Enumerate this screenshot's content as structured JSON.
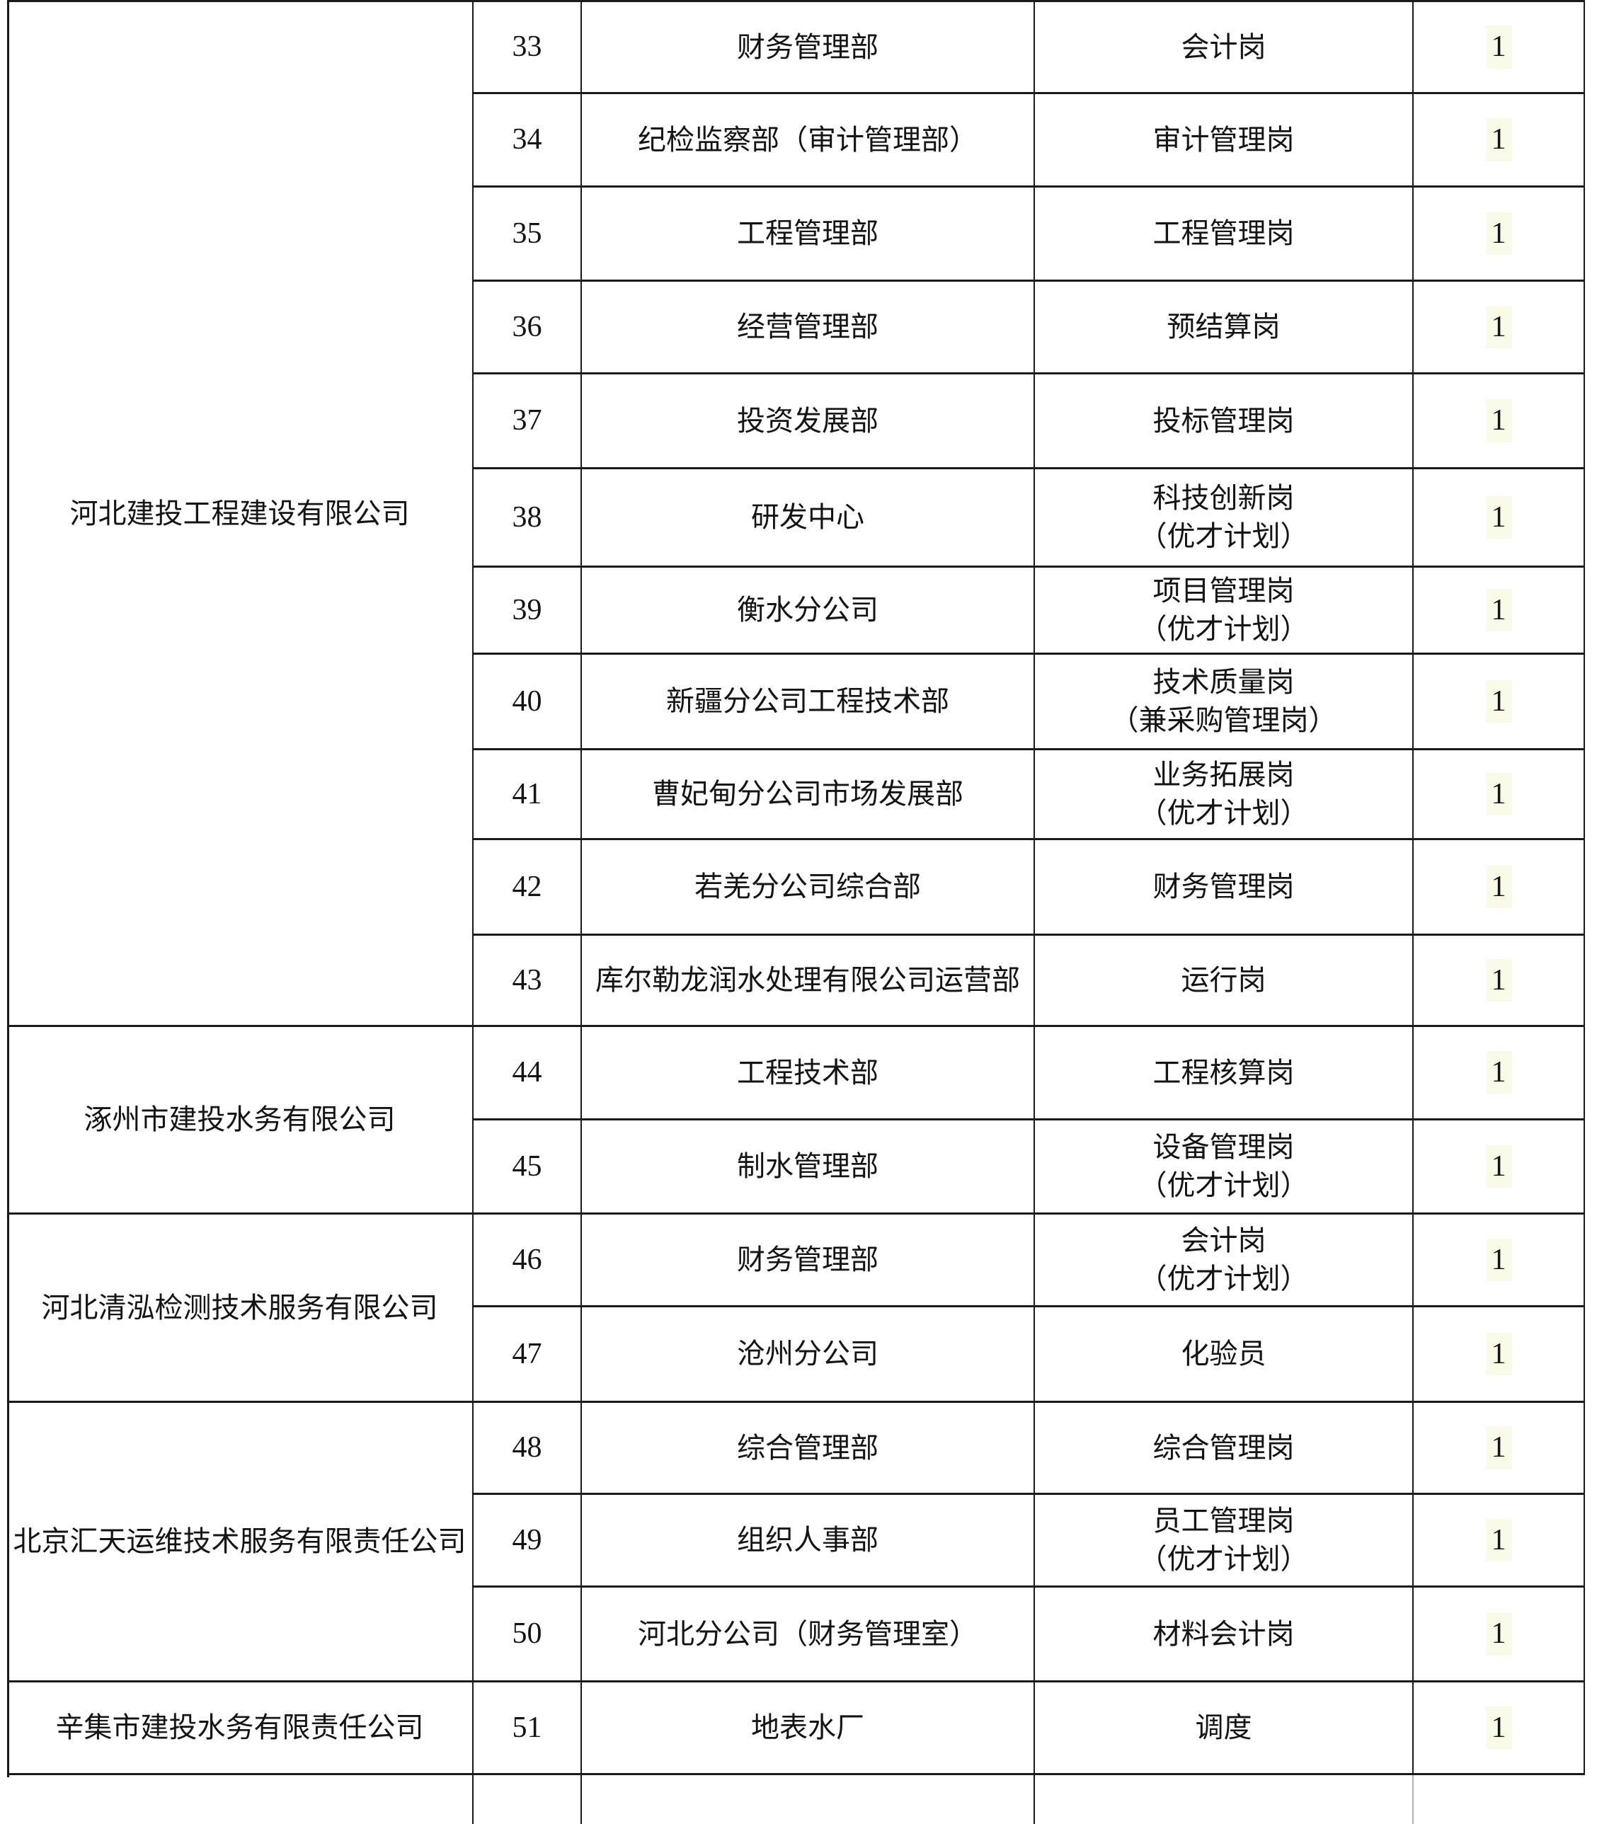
{
  "table": {
    "count_value": "1",
    "companies": [
      {
        "name": "河北建投工程建设有限公司",
        "rows": [
          {
            "no": "33",
            "department": "财务管理部",
            "position": "会计岗",
            "count": "1"
          },
          {
            "no": "34",
            "department": "纪检监察部（审计管理部）",
            "position": "审计管理岗",
            "count": "1"
          },
          {
            "no": "35",
            "department": "工程管理部",
            "position": "工程管理岗",
            "count": "1"
          },
          {
            "no": "36",
            "department": "经营管理部",
            "position": "预结算岗",
            "count": "1"
          },
          {
            "no": "37",
            "department": "投资发展部",
            "position": "投标管理岗",
            "count": "1"
          },
          {
            "no": "38",
            "department": "研发中心",
            "position": "科技创新岗\n（优才计划）",
            "count": "1"
          },
          {
            "no": "39",
            "department": "衡水分公司",
            "position": "项目管理岗\n（优才计划）",
            "count": "1"
          },
          {
            "no": "40",
            "department": "新疆分公司工程技术部",
            "position": "技术质量岗\n（兼采购管理岗）",
            "count": "1"
          },
          {
            "no": "41",
            "department": "曹妃甸分公司市场发展部",
            "position": "业务拓展岗\n（优才计划）",
            "count": "1"
          },
          {
            "no": "42",
            "department": "若羌分公司综合部",
            "position": "财务管理岗",
            "count": "1"
          },
          {
            "no": "43",
            "department": "库尔勒龙润水处理有限公司运营部",
            "position": "运行岗",
            "count": "1"
          }
        ]
      },
      {
        "name": "涿州市建投水务有限公司",
        "rows": [
          {
            "no": "44",
            "department": "工程技术部",
            "position": "工程核算岗",
            "count": "1"
          },
          {
            "no": "45",
            "department": "制水管理部",
            "position": "设备管理岗\n（优才计划）",
            "count": "1"
          }
        ]
      },
      {
        "name": "河北清泓检测技术服务有限公司",
        "rows": [
          {
            "no": "46",
            "department": "财务管理部",
            "position": "会计岗\n（优才计划）",
            "count": "1"
          },
          {
            "no": "47",
            "department": "沧州分公司",
            "position": "化验员",
            "count": "1"
          }
        ]
      },
      {
        "name": "北京汇天运维技术服务有限责任公司",
        "rows": [
          {
            "no": "48",
            "department": "综合管理部",
            "position": "综合管理岗",
            "count": "1"
          },
          {
            "no": "49",
            "department": "组织人事部",
            "position": "员工管理岗\n（优才计划）",
            "count": "1"
          },
          {
            "no": "50",
            "department": "河北分公司（财务管理室）",
            "position": "材料会计岗",
            "count": "1"
          }
        ]
      },
      {
        "name": "辛集市建投水务有限责任公司",
        "rows": [
          {
            "no": "51",
            "department": "地表水厂",
            "position": "调度",
            "count": "1"
          }
        ]
      }
    ]
  }
}
